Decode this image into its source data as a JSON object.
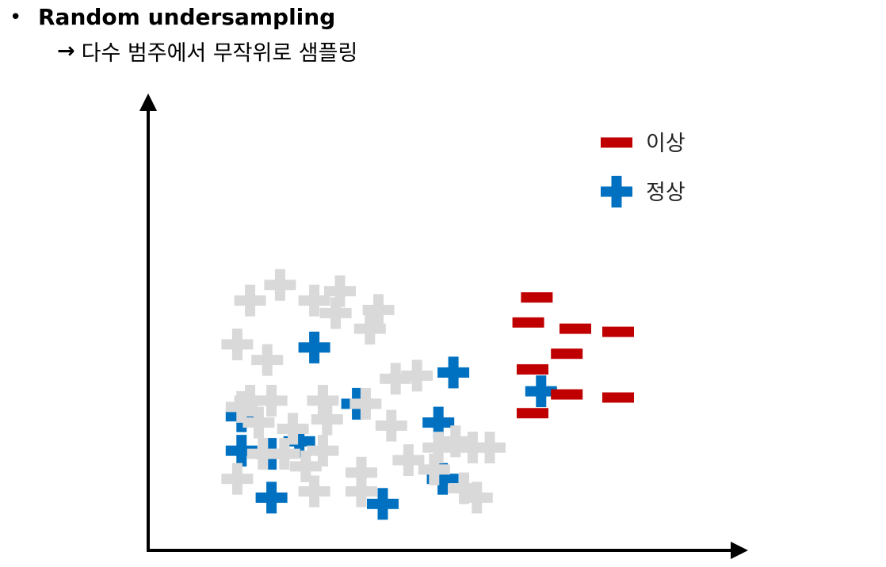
{
  "heading": {
    "bullet": "•",
    "title": "Random undersampling",
    "arrow": "→",
    "subtitle": "다수 범주에서 무작위로 샘플링"
  },
  "legend": [
    {
      "label": "이상",
      "symbol": "minus",
      "color": "#c00000"
    },
    {
      "label": "정상",
      "symbol": "plus",
      "color": "#0070c0"
    }
  ],
  "colors": {
    "anomaly": "#c00000",
    "normal_selected": "#0070c0",
    "normal_removed": "#d9d9d9",
    "axis": "#000000"
  },
  "chart_data": {
    "type": "scatter",
    "xlim": [
      0,
      1000
    ],
    "ylim": [
      0,
      1000
    ],
    "series": [
      {
        "name": "정상",
        "marker": "plus",
        "color": "#0070c0",
        "points": [
          [
            290,
            560
          ],
          [
            615,
            480
          ],
          [
            255,
            260
          ],
          [
            820,
            420
          ],
          [
            120,
            340
          ],
          [
            390,
            380
          ],
          [
            190,
            220
          ],
          [
            580,
            320
          ],
          [
            190,
            80
          ],
          [
            450,
            60
          ],
          [
            120,
            230
          ],
          [
            590,
            140
          ]
        ]
      },
      {
        "name": "",
        "marker": "plus",
        "color": "#d9d9d9",
        "points": [
          [
            210,
            760
          ],
          [
            140,
            710
          ],
          [
            290,
            710
          ],
          [
            350,
            740
          ],
          [
            440,
            680
          ],
          [
            420,
            620
          ],
          [
            340,
            670
          ],
          [
            110,
            570
          ],
          [
            180,
            520
          ],
          [
            240,
            300
          ],
          [
            140,
            390
          ],
          [
            160,
            320
          ],
          [
            120,
            370
          ],
          [
            220,
            220
          ],
          [
            170,
            220
          ],
          [
            310,
            390
          ],
          [
            320,
            330
          ],
          [
            410,
            380
          ],
          [
            480,
            460
          ],
          [
            530,
            470
          ],
          [
            470,
            310
          ],
          [
            660,
            240
          ],
          [
            570,
            170
          ],
          [
            400,
            160
          ],
          [
            270,
            180
          ],
          [
            700,
            240
          ],
          [
            620,
            260
          ],
          [
            580,
            240
          ],
          [
            510,
            200
          ],
          [
            640,
            110
          ],
          [
            400,
            100
          ],
          [
            290,
            100
          ],
          [
            310,
            230
          ],
          [
            110,
            140
          ],
          [
            190,
            390
          ],
          [
            670,
            80
          ]
        ]
      },
      {
        "name": "이상",
        "marker": "minus",
        "color": "#c00000",
        "points": [
          [
            810,
            720
          ],
          [
            790,
            640
          ],
          [
            900,
            620
          ],
          [
            1000,
            610
          ],
          [
            880,
            540
          ],
          [
            800,
            490
          ],
          [
            880,
            410
          ],
          [
            1000,
            400
          ],
          [
            800,
            350
          ]
        ]
      }
    ]
  }
}
